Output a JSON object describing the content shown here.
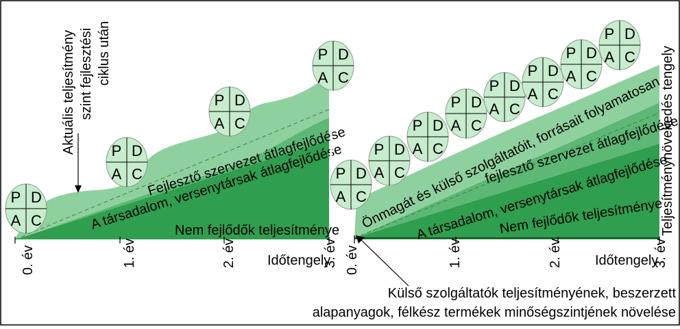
{
  "colors": {
    "border": "#000000",
    "band_dark": "#2f9e4e",
    "band_mid": "#5cb874",
    "band_light": "#8fd19e",
    "pdca_fill": "#c7ecce"
  },
  "pdca": {
    "p": "P",
    "d": "D",
    "a": "A",
    "c": "C"
  },
  "left": {
    "annotation": {
      "line1": "Aktuális teljesítmény",
      "line2": "szint fejlesztési",
      "line3": "ciklus után"
    },
    "bands": {
      "nonimproving": "Nem fejlődők teljesítménye",
      "society": "A társadalom, versenytársak átlagfejlődése",
      "developing": "Fejlesztő szervezet átlagfejlődése"
    },
    "ticks": [
      "0. év",
      "1. év",
      "2. év",
      "3. év"
    ],
    "x_axis": "Időtengely"
  },
  "right": {
    "bands": {
      "nonimproving": "Nem fejlődők teljesítménye",
      "society": "A társadalom, versenytársak átlagfejlődése",
      "developing": "fejlesztő szervezet átlagfejlődése",
      "self": "Önmagát és külső szolgáltatóit, forrásait folyamatosan"
    },
    "ticks": [
      "0. év",
      "1. év",
      "2. év",
      "3. év"
    ],
    "x_axis": "Időtengely",
    "y_axis": "Teljesítménynövekedés tengely"
  },
  "bottom_note": {
    "line1": "Külső szolgáltatók teljesítményének, beszerzett",
    "line2": "alapanyagok, félkész termékek minőségszintjének növelése"
  }
}
